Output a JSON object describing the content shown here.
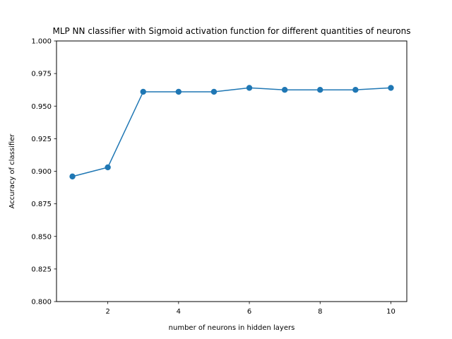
{
  "chart_data": {
    "type": "line",
    "title": "MLP NN classifier with Sigmoid activation function for different quantities of neurons",
    "xlabel": "number of neurons in hidden layers",
    "ylabel": "Accuracy of classifier",
    "xlim": [
      0.55,
      10.45
    ],
    "ylim": [
      0.8,
      1.0
    ],
    "x_ticks": [
      2,
      4,
      6,
      8,
      10
    ],
    "x_tick_labels": [
      "2",
      "4",
      "6",
      "8",
      "10"
    ],
    "y_ticks": [
      0.8,
      0.825,
      0.85,
      0.875,
      0.9,
      0.925,
      0.95,
      0.975,
      1.0
    ],
    "y_tick_labels": [
      "0.800",
      "0.825",
      "0.850",
      "0.875",
      "0.900",
      "0.925",
      "0.950",
      "0.975",
      "1.000"
    ],
    "grid": false,
    "series": [
      {
        "x": [
          1,
          2,
          3,
          4,
          5,
          6,
          7,
          8,
          9,
          10
        ],
        "values": [
          0.896,
          0.903,
          0.961,
          0.961,
          0.961,
          0.964,
          0.9625,
          0.9625,
          0.9625,
          0.964
        ],
        "color": "#1f77b4",
        "marker": "circle"
      }
    ]
  }
}
